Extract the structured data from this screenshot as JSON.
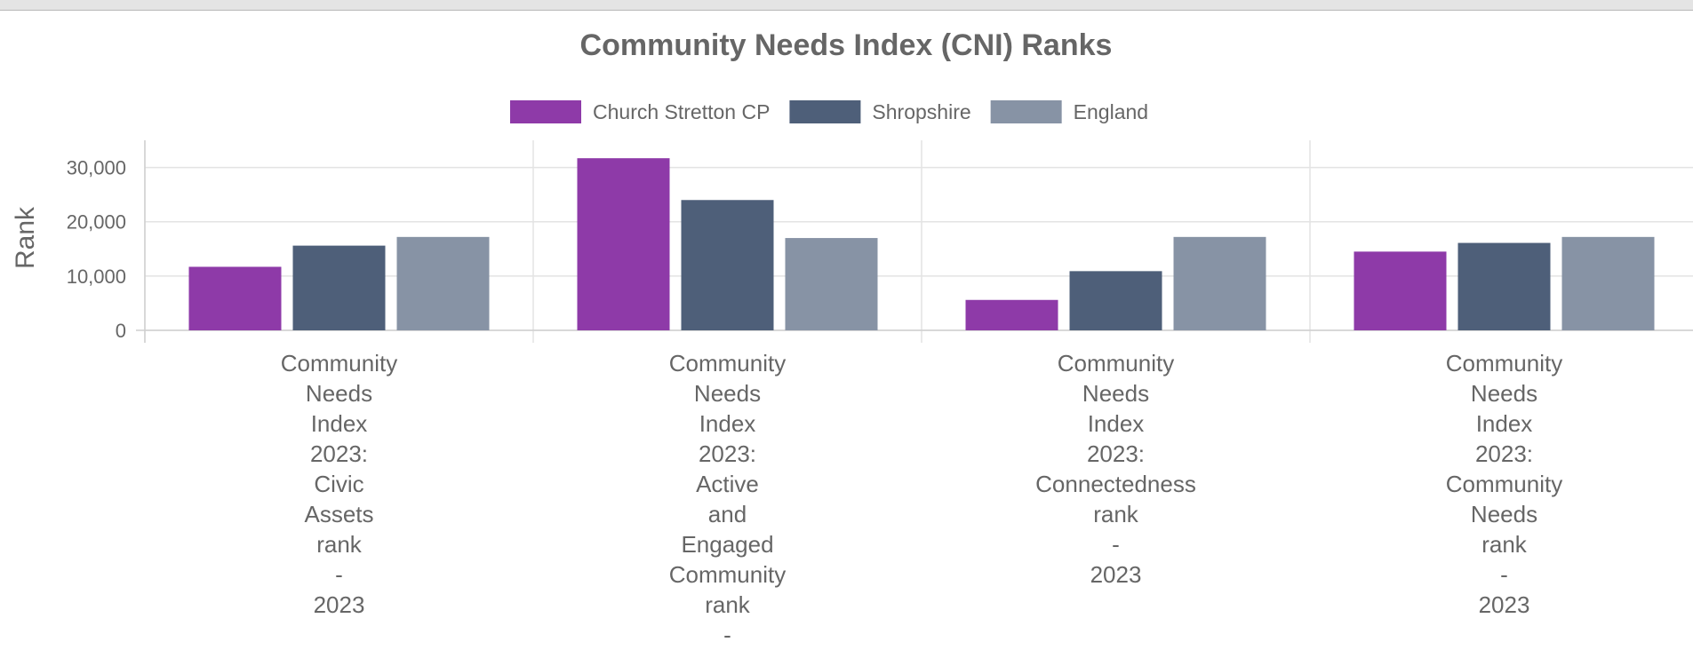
{
  "chart_data": {
    "type": "bar",
    "title": "Community Needs Index (CNI) Ranks",
    "ylabel": "Rank",
    "xlabel": "",
    "ylim": [
      0,
      35000
    ],
    "yticks": [
      0,
      10000,
      20000,
      30000
    ],
    "ytick_labels": [
      "0",
      "10,000",
      "20,000",
      "30,000"
    ],
    "legend_position": "top-center",
    "grid": true,
    "categories": [
      [
        "Community",
        "Needs",
        "Index",
        "2023:",
        "Civic",
        "Assets",
        "rank",
        "-",
        "2023"
      ],
      [
        "Community",
        "Needs",
        "Index",
        "2023:",
        "Active",
        "and",
        "Engaged",
        "Community",
        "rank",
        "-"
      ],
      [
        "Community",
        "Needs",
        "Index",
        "2023:",
        "Connectedness",
        "rank",
        "-",
        "2023"
      ],
      [
        "Community",
        "Needs",
        "Index",
        "2023:",
        "Community",
        "Needs",
        "rank",
        "-",
        "2023"
      ]
    ],
    "series": [
      {
        "name": "Church Stretton CP",
        "color": "#8e3aa8",
        "values": [
          11700,
          31700,
          5600,
          14500
        ]
      },
      {
        "name": "Shropshire",
        "color": "#4e5f79",
        "values": [
          15600,
          24000,
          10900,
          16100
        ]
      },
      {
        "name": "England",
        "color": "#8793a5",
        "values": [
          17200,
          17000,
          17200,
          17200
        ]
      }
    ]
  }
}
